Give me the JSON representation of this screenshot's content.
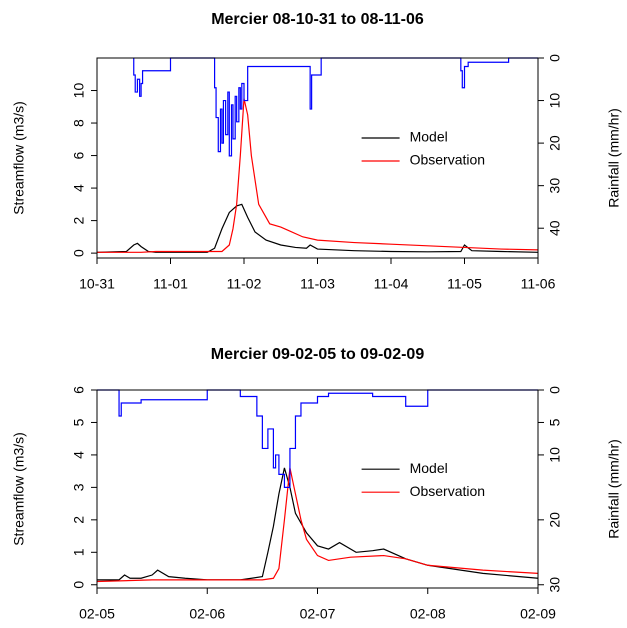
{
  "chart_data": [
    {
      "type": "line",
      "title": "Mercier 08-10-31 to 08-11-06",
      "y_label": "Streamflow (m3/s)",
      "y2_label": "Rainfall (mm/hr)",
      "xlim": [
        0,
        6
      ],
      "xticks": [
        {
          "value": 0,
          "label": "10-31"
        },
        {
          "value": 1,
          "label": "11-01"
        },
        {
          "value": 2,
          "label": "11-02"
        },
        {
          "value": 3,
          "label": "11-03"
        },
        {
          "value": 4,
          "label": "11-04"
        },
        {
          "value": 5,
          "label": "11-05"
        },
        {
          "value": 6,
          "label": "11-06"
        }
      ],
      "ylim": [
        -0.3,
        12
      ],
      "yticks": [
        0,
        2,
        4,
        6,
        8,
        10
      ],
      "y2lim": [
        0,
        47
      ],
      "y2ticks": [
        0,
        10,
        20,
        30,
        40
      ],
      "y2_inverted": true,
      "legend": "right",
      "series": [
        {
          "name": "Model",
          "color": "#000000",
          "x": [
            0,
            0.4,
            0.5,
            0.55,
            0.6,
            0.7,
            0.8,
            1.0,
            1.5,
            1.6,
            1.7,
            1.8,
            1.9,
            1.97,
            2.05,
            2.15,
            2.3,
            2.5,
            2.7,
            2.85,
            2.9,
            3.0,
            3.5,
            4.0,
            4.5,
            4.95,
            5.0,
            5.1,
            5.5,
            6
          ],
          "values": [
            0.05,
            0.1,
            0.5,
            0.6,
            0.4,
            0.1,
            0.05,
            0.05,
            0.05,
            0.3,
            1.5,
            2.5,
            2.9,
            3.0,
            2.2,
            1.3,
            0.8,
            0.5,
            0.35,
            0.3,
            0.5,
            0.25,
            0.15,
            0.1,
            0.08,
            0.1,
            0.5,
            0.15,
            0.1,
            0.05
          ]
        },
        {
          "name": "Observation",
          "color": "#ff0000",
          "x": [
            0,
            0.6,
            0.8,
            1.0,
            1.5,
            1.7,
            1.8,
            1.85,
            1.9,
            1.95,
            2.0,
            2.05,
            2.1,
            2.2,
            2.35,
            2.5,
            2.6,
            2.8,
            3.0,
            3.5,
            4.0,
            4.5,
            5.0,
            5.5,
            6
          ],
          "values": [
            0.05,
            0.05,
            0.1,
            0.1,
            0.1,
            0.1,
            0.5,
            1.5,
            3.0,
            6.0,
            9.5,
            8.5,
            6.0,
            3.0,
            1.8,
            1.6,
            1.4,
            1.0,
            0.8,
            0.65,
            0.55,
            0.45,
            0.35,
            0.25,
            0.2
          ]
        },
        {
          "color": "#0000ff",
          "axis": "y2",
          "step": true,
          "x": [
            0.5,
            0.52,
            0.55,
            0.58,
            0.6,
            0.62,
            1.0,
            1.6,
            1.62,
            1.65,
            1.68,
            1.7,
            1.72,
            1.75,
            1.78,
            1.8,
            1.83,
            1.85,
            1.88,
            1.9,
            1.93,
            1.95,
            1.97,
            2.0,
            2.05,
            2.9,
            2.92,
            2.95,
            3.05,
            4.95,
            4.97,
            5.0,
            5.05,
            5.6
          ],
          "values": [
            4,
            8,
            5,
            9,
            6,
            3,
            0,
            7,
            14,
            22,
            12,
            20,
            10,
            18,
            8,
            23,
            11,
            19,
            9,
            15,
            7,
            12,
            6,
            10,
            2,
            12,
            4,
            4,
            0,
            3,
            7,
            2,
            1,
            0
          ]
        }
      ]
    },
    {
      "type": "line",
      "title": "Mercier 09-02-05 to 09-02-09",
      "y_label": "Streamflow (m3/s)",
      "y2_label": "Rainfall (mm/hr)",
      "xlim": [
        0,
        4
      ],
      "xticks": [
        {
          "value": 0,
          "label": "02-05"
        },
        {
          "value": 1,
          "label": "02-06"
        },
        {
          "value": 2,
          "label": "02-07"
        },
        {
          "value": 3,
          "label": "02-08"
        },
        {
          "value": 4,
          "label": "02-09"
        }
      ],
      "ylim": [
        -0.1,
        6
      ],
      "yticks": [
        0,
        1,
        2,
        3,
        4,
        5,
        6
      ],
      "y2lim": [
        0,
        30.5
      ],
      "y2ticks": [
        0,
        5,
        10,
        20,
        30
      ],
      "y2_inverted": true,
      "legend": "right",
      "series": [
        {
          "name": "Model",
          "color": "#000000",
          "x": [
            0,
            0.2,
            0.25,
            0.3,
            0.4,
            0.5,
            0.55,
            0.65,
            0.8,
            1.0,
            1.3,
            1.5,
            1.55,
            1.6,
            1.65,
            1.7,
            1.75,
            1.8,
            1.9,
            2.0,
            2.1,
            2.2,
            2.35,
            2.5,
            2.6,
            2.8,
            3.0,
            3.5,
            4
          ],
          "values": [
            0.15,
            0.15,
            0.3,
            0.2,
            0.2,
            0.3,
            0.45,
            0.25,
            0.2,
            0.15,
            0.15,
            0.25,
            1.0,
            1.8,
            2.8,
            3.6,
            3.0,
            2.2,
            1.6,
            1.2,
            1.1,
            1.3,
            1.0,
            1.05,
            1.1,
            0.8,
            0.6,
            0.35,
            0.2
          ]
        },
        {
          "name": "Observation",
          "color": "#ff0000",
          "x": [
            0,
            0.5,
            1.0,
            1.5,
            1.6,
            1.65,
            1.7,
            1.75,
            1.8,
            1.85,
            1.9,
            2.0,
            2.1,
            2.3,
            2.6,
            2.8,
            3.0,
            3.5,
            4
          ],
          "values": [
            0.1,
            0.15,
            0.15,
            0.15,
            0.2,
            0.5,
            2.0,
            3.6,
            2.8,
            2.0,
            1.4,
            0.9,
            0.75,
            0.85,
            0.9,
            0.8,
            0.6,
            0.45,
            0.35
          ]
        },
        {
          "color": "#0000ff",
          "axis": "y2",
          "step": true,
          "x": [
            0.0,
            0.2,
            0.22,
            0.25,
            0.3,
            0.4,
            1.0,
            1.3,
            1.45,
            1.5,
            1.55,
            1.6,
            1.62,
            1.65,
            1.7,
            1.75,
            1.8,
            1.85,
            2.0,
            2.1,
            2.2,
            2.5,
            2.8,
            3.0
          ],
          "values": [
            0,
            4,
            2,
            2,
            2,
            1.5,
            0,
            1,
            4,
            9,
            6,
            12,
            10,
            13,
            15,
            9,
            4,
            2,
            1,
            0.5,
            0.5,
            1,
            2.5,
            0
          ]
        }
      ]
    }
  ]
}
